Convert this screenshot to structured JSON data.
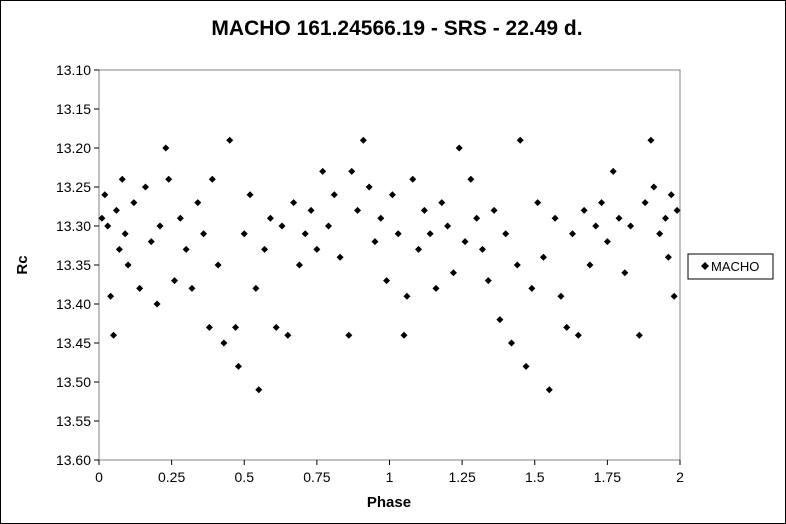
{
  "chart_data": {
    "type": "scatter",
    "title": "MACHO 161.24566.19  - SRS - 22.49 d.",
    "xlabel": "Phase",
    "ylabel": "Rc",
    "xlim": [
      0,
      2
    ],
    "ylim": [
      13.1,
      13.6
    ],
    "y_inverted": true,
    "grid": false,
    "legend_position": "right",
    "x_tick_labels": [
      "0",
      "0.25",
      "0.5",
      "0.75",
      "1",
      "1.25",
      "1.5",
      "1.75",
      "2"
    ],
    "y_tick_labels": [
      "13.10",
      "13.15",
      "13.20",
      "13.25",
      "13.30",
      "13.35",
      "13.40",
      "13.45",
      "13.50",
      "13.55",
      "13.60"
    ],
    "marker_color": "#000000",
    "series": [
      {
        "name": "MACHO",
        "marker": "diamond",
        "points": [
          [
            0.01,
            13.29
          ],
          [
            0.02,
            13.26
          ],
          [
            0.03,
            13.3
          ],
          [
            0.04,
            13.39
          ],
          [
            0.05,
            13.44
          ],
          [
            0.06,
            13.28
          ],
          [
            0.07,
            13.33
          ],
          [
            0.08,
            13.24
          ],
          [
            0.09,
            13.31
          ],
          [
            0.1,
            13.35
          ],
          [
            0.12,
            13.27
          ],
          [
            0.14,
            13.38
          ],
          [
            0.16,
            13.25
          ],
          [
            0.18,
            13.32
          ],
          [
            0.2,
            13.4
          ],
          [
            0.21,
            13.3
          ],
          [
            0.23,
            13.2
          ],
          [
            0.24,
            13.24
          ],
          [
            0.26,
            13.37
          ],
          [
            0.28,
            13.29
          ],
          [
            0.3,
            13.33
          ],
          [
            0.32,
            13.38
          ],
          [
            0.34,
            13.27
          ],
          [
            0.36,
            13.31
          ],
          [
            0.38,
            13.43
          ],
          [
            0.39,
            13.24
          ],
          [
            0.41,
            13.35
          ],
          [
            0.43,
            13.45
          ],
          [
            0.45,
            13.19
          ],
          [
            0.47,
            13.43
          ],
          [
            0.48,
            13.48
          ],
          [
            0.5,
            13.31
          ],
          [
            0.52,
            13.26
          ],
          [
            0.54,
            13.38
          ],
          [
            0.55,
            13.51
          ],
          [
            0.57,
            13.33
          ],
          [
            0.59,
            13.29
          ],
          [
            0.61,
            13.43
          ],
          [
            0.63,
            13.3
          ],
          [
            0.65,
            13.44
          ],
          [
            0.67,
            13.27
          ],
          [
            0.69,
            13.35
          ],
          [
            0.71,
            13.31
          ],
          [
            0.73,
            13.28
          ],
          [
            0.75,
            13.33
          ],
          [
            0.77,
            13.23
          ],
          [
            0.79,
            13.3
          ],
          [
            0.81,
            13.26
          ],
          [
            0.83,
            13.34
          ],
          [
            0.86,
            13.44
          ],
          [
            0.87,
            13.23
          ],
          [
            0.89,
            13.28
          ],
          [
            0.91,
            13.19
          ],
          [
            0.93,
            13.25
          ],
          [
            0.95,
            13.32
          ],
          [
            0.97,
            13.29
          ],
          [
            0.99,
            13.37
          ],
          [
            1.01,
            13.26
          ],
          [
            1.03,
            13.31
          ],
          [
            1.05,
            13.44
          ],
          [
            1.06,
            13.39
          ],
          [
            1.08,
            13.24
          ],
          [
            1.1,
            13.33
          ],
          [
            1.12,
            13.28
          ],
          [
            1.14,
            13.31
          ],
          [
            1.16,
            13.38
          ],
          [
            1.18,
            13.27
          ],
          [
            1.2,
            13.3
          ],
          [
            1.22,
            13.36
          ],
          [
            1.24,
            13.2
          ],
          [
            1.26,
            13.32
          ],
          [
            1.28,
            13.24
          ],
          [
            1.3,
            13.29
          ],
          [
            1.32,
            13.33
          ],
          [
            1.34,
            13.37
          ],
          [
            1.36,
            13.28
          ],
          [
            1.38,
            13.42
          ],
          [
            1.4,
            13.31
          ],
          [
            1.42,
            13.45
          ],
          [
            1.44,
            13.35
          ],
          [
            1.45,
            13.19
          ],
          [
            1.47,
            13.48
          ],
          [
            1.49,
            13.38
          ],
          [
            1.51,
            13.27
          ],
          [
            1.53,
            13.34
          ],
          [
            1.55,
            13.51
          ],
          [
            1.57,
            13.29
          ],
          [
            1.59,
            13.39
          ],
          [
            1.61,
            13.43
          ],
          [
            1.63,
            13.31
          ],
          [
            1.65,
            13.44
          ],
          [
            1.67,
            13.28
          ],
          [
            1.69,
            13.35
          ],
          [
            1.71,
            13.3
          ],
          [
            1.73,
            13.27
          ],
          [
            1.75,
            13.32
          ],
          [
            1.77,
            13.23
          ],
          [
            1.79,
            13.29
          ],
          [
            1.81,
            13.36
          ],
          [
            1.83,
            13.3
          ],
          [
            1.86,
            13.44
          ],
          [
            1.88,
            13.27
          ],
          [
            1.9,
            13.19
          ],
          [
            1.91,
            13.25
          ],
          [
            1.93,
            13.31
          ],
          [
            1.95,
            13.29
          ],
          [
            1.96,
            13.34
          ],
          [
            1.97,
            13.26
          ],
          [
            1.98,
            13.39
          ],
          [
            1.99,
            13.28
          ]
        ]
      }
    ]
  }
}
